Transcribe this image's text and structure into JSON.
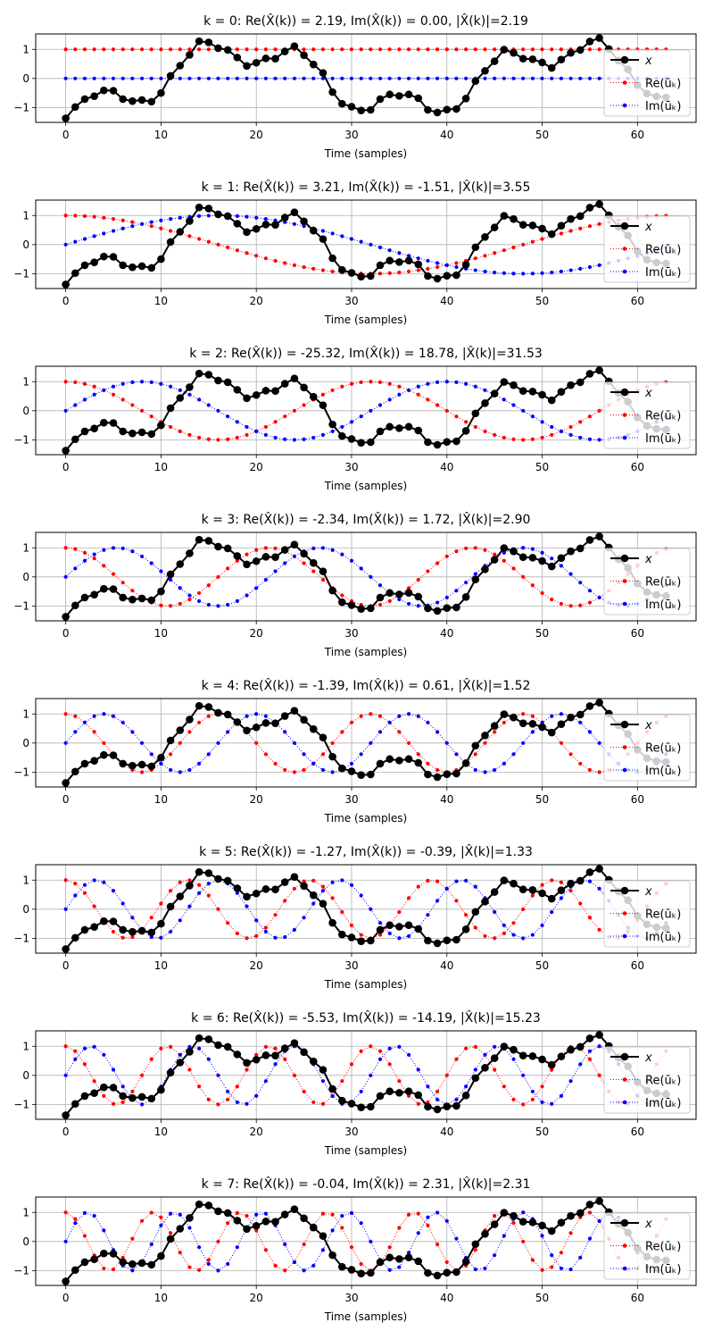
{
  "chart_data": {
    "type": "line",
    "layout": "8 stacked subplots",
    "grid": true,
    "legend_placement": "right",
    "colors": {
      "x": "#000000",
      "re": "#ff0000",
      "im": "#0000ff"
    },
    "x": {
      "name": "x",
      "values": [
        -1.37,
        -0.98,
        -0.71,
        -0.61,
        -0.41,
        -0.42,
        -0.71,
        -0.78,
        -0.74,
        -0.8,
        -0.5,
        0.09,
        0.44,
        0.81,
        1.28,
        1.24,
        1.04,
        0.98,
        0.72,
        0.43,
        0.54,
        0.69,
        0.68,
        0.93,
        1.11,
        0.8,
        0.48,
        0.19,
        -0.47,
        -0.87,
        -0.97,
        -1.1,
        -1.08,
        -0.71,
        -0.55,
        -0.6,
        -0.55,
        -0.68,
        -1.08,
        -1.17,
        -1.07,
        -1.05,
        -0.69,
        -0.09,
        0.26,
        0.59,
        0.99,
        0.88,
        0.68,
        0.66,
        0.55,
        0.36,
        0.65,
        0.88,
        0.98,
        1.27,
        1.39,
        1.01,
        0.61,
        0.31,
        -0.23,
        -0.52,
        -0.62,
        -0.65
      ]
    },
    "N": 64,
    "basis_series": {
      "re": "Re(ū_k) = cos(2πkn/N)",
      "im": "Im(ū_k) = sin(2πkn/N)"
    },
    "xlim": [
      -3.15,
      66.15
    ],
    "ylim": [
      -1.51,
      1.53
    ],
    "xticks": [
      "0",
      "10",
      "20",
      "30",
      "40",
      "50",
      "60"
    ],
    "yticks": [
      "−1",
      "0",
      "1"
    ],
    "xlabel": "Time (samples)",
    "legend": [
      "x",
      "Re(ūₖ)",
      "Im(ūₖ)"
    ],
    "subplots": [
      {
        "k": 0,
        "title": "k = 0: Re(X̂(k)) = 2.19, Im(X̂(k)) = 0.00, |X̂(k)|=2.19"
      },
      {
        "k": 1,
        "title": "k = 1: Re(X̂(k)) = 3.21, Im(X̂(k)) = -1.51, |X̂(k)|=3.55"
      },
      {
        "k": 2,
        "title": "k = 2: Re(X̂(k)) = -25.32, Im(X̂(k)) = 18.78, |X̂(k)|=31.53"
      },
      {
        "k": 3,
        "title": "k = 3: Re(X̂(k)) = -2.34, Im(X̂(k)) = 1.72, |X̂(k)|=2.90"
      },
      {
        "k": 4,
        "title": "k = 4: Re(X̂(k)) = -1.39, Im(X̂(k)) = 0.61, |X̂(k)|=1.52"
      },
      {
        "k": 5,
        "title": "k = 5: Re(X̂(k)) = -1.27, Im(X̂(k)) = -0.39, |X̂(k)|=1.33"
      },
      {
        "k": 6,
        "title": "k = 6: Re(X̂(k)) = -5.53, Im(X̂(k)) = -14.19, |X̂(k)|=15.23"
      },
      {
        "k": 7,
        "title": "k = 7: Re(X̂(k)) = -0.04, Im(X̂(k)) = 2.31, |X̂(k)|=2.31"
      }
    ]
  }
}
